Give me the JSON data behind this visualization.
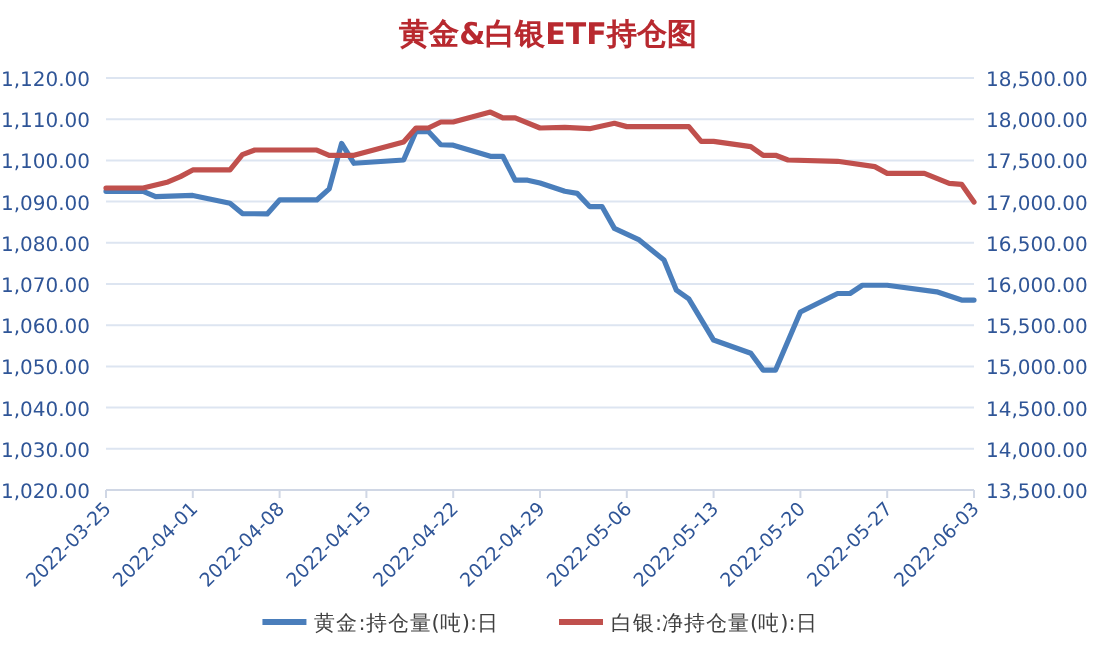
{
  "chart_data": {
    "type": "line",
    "title": "黄金&白银ETF持仓图",
    "xlim": [
      "2022-03-25",
      "2022-06-03"
    ],
    "xticks": [
      "2022-03-25",
      "2022-04-01",
      "2022-04-08",
      "2022-04-15",
      "2022-04-22",
      "2022-04-29",
      "2022-05-06",
      "2022-05-13",
      "2022-05-20",
      "2022-05-27",
      "2022-06-03"
    ],
    "ylim": [
      1020,
      1120
    ],
    "yticks": [
      {
        "value": 1020,
        "label": "1,020.00"
      },
      {
        "value": 1030,
        "label": "1,030.00"
      },
      {
        "value": 1040,
        "label": "1,040.00"
      },
      {
        "value": 1050,
        "label": "1,050.00"
      },
      {
        "value": 1060,
        "label": "1,060.00"
      },
      {
        "value": 1070,
        "label": "1,070.00"
      },
      {
        "value": 1080,
        "label": "1,080.00"
      },
      {
        "value": 1090,
        "label": "1,090.00"
      },
      {
        "value": 1100,
        "label": "1,100.00"
      },
      {
        "value": 1110,
        "label": "1,110.00"
      },
      {
        "value": 1120,
        "label": "1,120.00"
      }
    ],
    "y2lim": [
      13500,
      18500
    ],
    "y2ticks": [
      {
        "value": 13500,
        "label": "13,500.00"
      },
      {
        "value": 14000,
        "label": "14,000.00"
      },
      {
        "value": 14500,
        "label": "14,500.00"
      },
      {
        "value": 15000,
        "label": "15,000.00"
      },
      {
        "value": 15500,
        "label": "15,500.00"
      },
      {
        "value": 16000,
        "label": "16,000.00"
      },
      {
        "value": 16500,
        "label": "16,500.00"
      },
      {
        "value": 17000,
        "label": "17,000.00"
      },
      {
        "value": 17500,
        "label": "17,500.00"
      },
      {
        "value": 18000,
        "label": "18,000.00"
      },
      {
        "value": 18500,
        "label": "18,500.00"
      }
    ],
    "grid": "y",
    "legend": "bottom",
    "series": [
      {
        "name": "黄金:持仓量(吨):日",
        "color": "#4a7ebb",
        "x": [
          "2022-03-25",
          "2022-03-28",
          "2022-03-29",
          "2022-04-01",
          "2022-04-04",
          "2022-04-05",
          "2022-04-07",
          "2022-04-08",
          "2022-04-11",
          "2022-04-12",
          "2022-04-13",
          "2022-04-14",
          "2022-04-18",
          "2022-04-19",
          "2022-04-20",
          "2022-04-21",
          "2022-04-22",
          "2022-04-25",
          "2022-04-26",
          "2022-04-27",
          "2022-04-28",
          "2022-04-29",
          "2022-05-01",
          "2022-05-02",
          "2022-05-03",
          "2022-05-04",
          "2022-05-05",
          "2022-05-07",
          "2022-05-09",
          "2022-05-10",
          "2022-05-11",
          "2022-05-13",
          "2022-05-16",
          "2022-05-17",
          "2022-05-18",
          "2022-05-20",
          "2022-05-23",
          "2022-05-24",
          "2022-05-25",
          "2022-05-27",
          "2022-05-31",
          "2022-06-02",
          "2022-06-03"
        ],
        "values": [
          1092.5,
          1092.5,
          1091.2,
          1091.5,
          1089.6,
          1087.1,
          1087,
          1090.4,
          1090.4,
          1093.1,
          1104.1,
          1099.3,
          1100.1,
          1107,
          1107,
          1103.8,
          1103.7,
          1101,
          1101,
          1095.2,
          1095.2,
          1094.5,
          1092.5,
          1092,
          1088.8,
          1088.8,
          1083.5,
          1080.7,
          1075.8,
          1068.5,
          1066.4,
          1056.4,
          1053.2,
          1049.1,
          1049.1,
          1063.2,
          1067.7,
          1067.7,
          1069.7,
          1069.7,
          1068.1,
          1066.1,
          1066.1
        ]
      },
      {
        "name": "白银:净持仓量(吨):日",
        "color": "#c0504d",
        "axis": "y2",
        "x": [
          "2022-03-25",
          "2022-03-28",
          "2022-03-30",
          "2022-03-31",
          "2022-04-01",
          "2022-04-04",
          "2022-04-05",
          "2022-04-06",
          "2022-04-11",
          "2022-04-12",
          "2022-04-14",
          "2022-04-18",
          "2022-04-19",
          "2022-04-20",
          "2022-04-21",
          "2022-04-22",
          "2022-04-25",
          "2022-04-26",
          "2022-04-27",
          "2022-04-29",
          "2022-05-01",
          "2022-05-03",
          "2022-05-05",
          "2022-05-06",
          "2022-05-11",
          "2022-05-12",
          "2022-05-13",
          "2022-05-16",
          "2022-05-17",
          "2022-05-18",
          "2022-05-19",
          "2022-05-23",
          "2022-05-26",
          "2022-05-27",
          "2022-05-30",
          "2022-06-01",
          "2022-06-02",
          "2022-06-03"
        ],
        "values": [
          17165,
          17165,
          17238,
          17303,
          17384,
          17384,
          17570,
          17626,
          17626,
          17562,
          17562,
          17723,
          17893,
          17893,
          17966,
          17966,
          18087,
          18015,
          18015,
          17893,
          17900,
          17885,
          17950,
          17910,
          17910,
          17731,
          17731,
          17667,
          17562,
          17562,
          17505,
          17489,
          17424,
          17343,
          17343,
          17222,
          17210,
          16995
        ]
      }
    ]
  }
}
